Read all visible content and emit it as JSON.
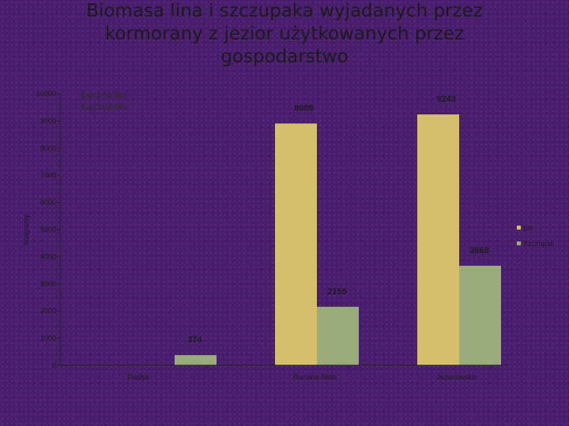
{
  "slide": {
    "title": "Biomasa lina i szczupaka wyjadanych przez kormorany z jezior użytkowanych przez gospodarstwo"
  },
  "chart_data": {
    "type": "bar",
    "title": "Biomasa lina i szczupaka wyjadanych przez kormorany z jezior użytkowanych przez gospodarstwo",
    "ylabel": "kilogramy",
    "xlabel": "",
    "categories": [
      "Pasłęk",
      "Ruciane-Nida",
      "Jeziorowskie"
    ],
    "series": [
      {
        "name": "Lin",
        "color": "#d4bf6a",
        "values": [
          0,
          8909,
          9243
        ]
      },
      {
        "name": "Szczupak",
        "color": "#9aab7c",
        "values": [
          374,
          2155,
          3668
        ]
      }
    ],
    "data_labels": [
      {
        "series": "Lin",
        "category": "Ruciane-Nida",
        "text": "8909"
      },
      {
        "series": "Lin",
        "category": "Jeziorowskie",
        "text": "9243"
      },
      {
        "series": "Szczupak",
        "category": "Pasłęk",
        "text": "374"
      },
      {
        "series": "Szczupak",
        "category": "Ruciane-Nida",
        "text": "2155"
      },
      {
        "series": "Szczupak",
        "category": "Jeziorowskie",
        "text": "3668"
      }
    ],
    "ylim": [
      0,
      10000
    ],
    "yticks": [
      "0",
      "1000",
      "2000",
      "3000",
      "4000",
      "5000",
      "6000",
      "7000",
      "8000",
      "9000",
      "10000"
    ],
    "grid": false,
    "legend": "right",
    "annotations": [
      "Łączna bio",
      "Łączna bio"
    ]
  }
}
